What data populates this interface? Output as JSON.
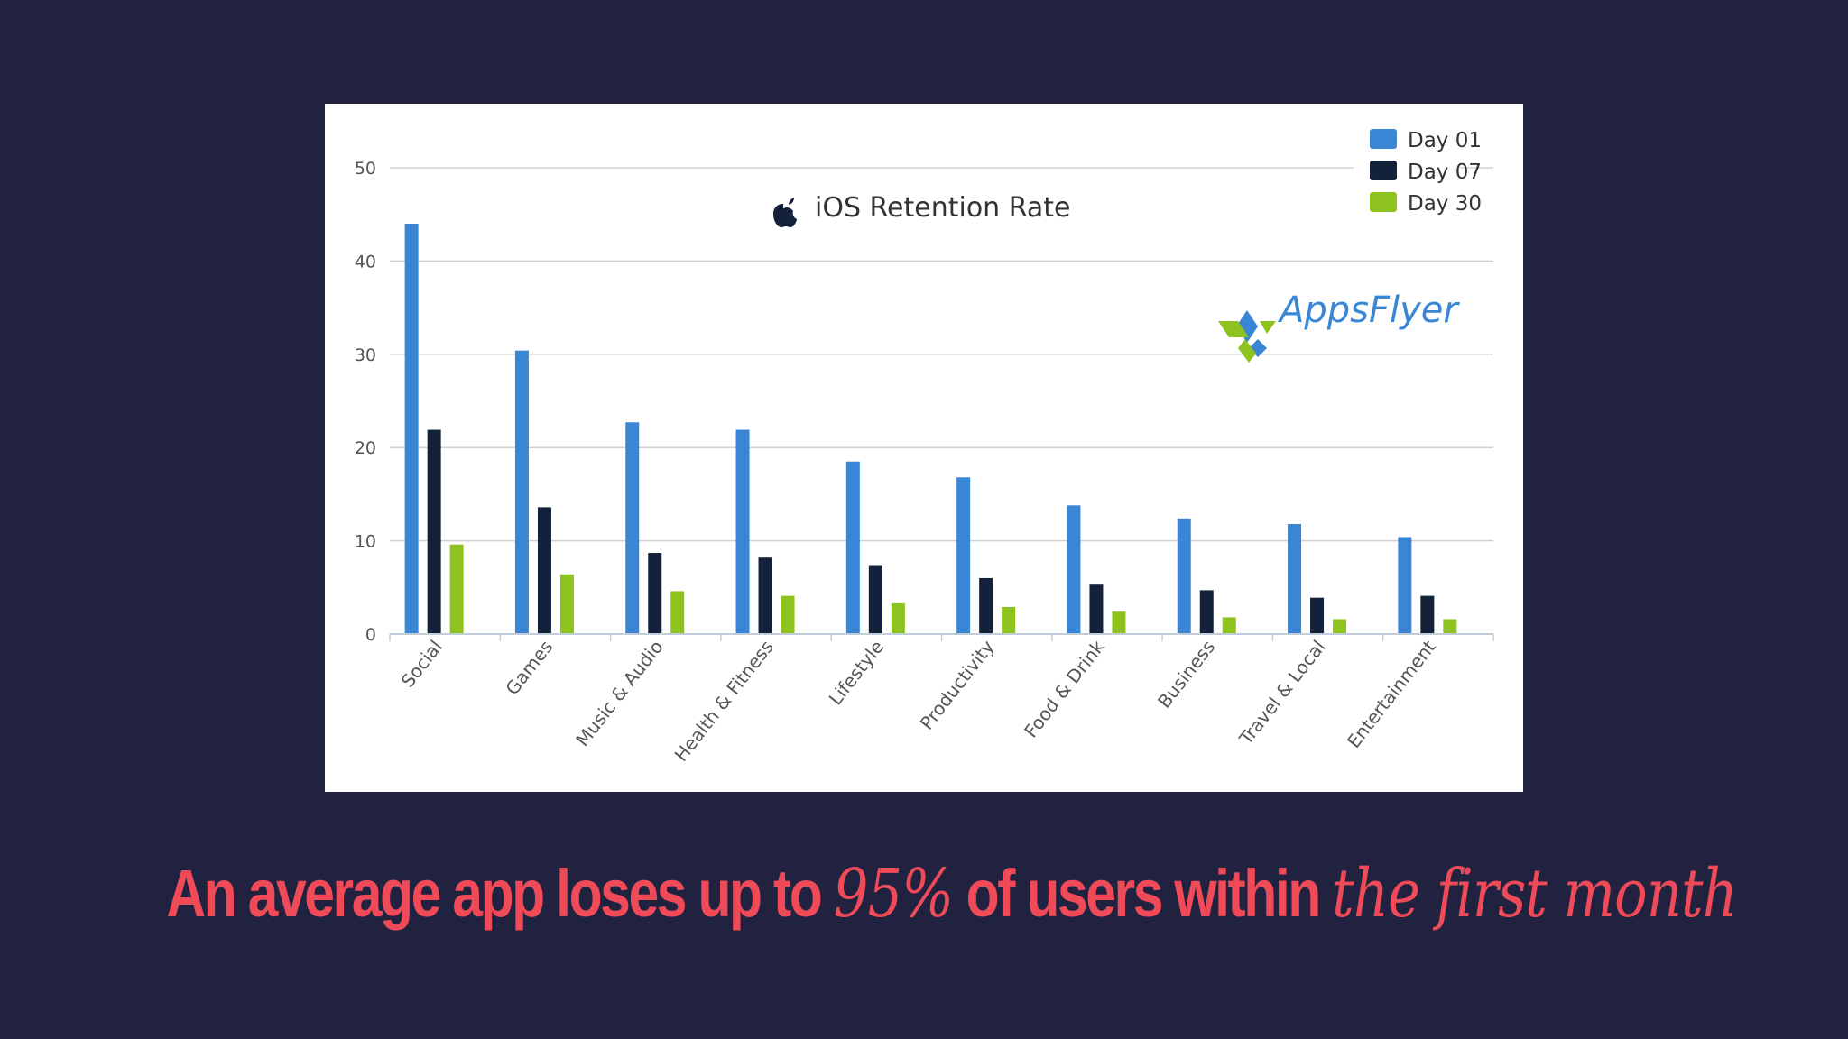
{
  "chart_data": {
    "type": "bar",
    "title": "iOS Retention Rate",
    "title_icon": "apple-icon",
    "categories": [
      "Social",
      "Games",
      "Music & Audio",
      "Health & Fitness",
      "Lifestyle",
      "Productivity",
      "Food & Drink",
      "Business",
      "Travel & Local",
      "Entertainment"
    ],
    "series": [
      {
        "name": "Day 01",
        "color": "#3a86d6",
        "values": [
          44,
          30.4,
          22.7,
          21.9,
          18.5,
          16.8,
          13.8,
          12.4,
          11.8,
          10.4
        ]
      },
      {
        "name": "Day 07",
        "color": "#14213a",
        "values": [
          21.9,
          13.6,
          8.7,
          8.2,
          7.3,
          6.0,
          5.3,
          4.7,
          3.9,
          4.1
        ]
      },
      {
        "name": "Day 30",
        "color": "#8dc21f",
        "values": [
          9.6,
          6.4,
          4.6,
          4.1,
          3.3,
          2.9,
          2.4,
          1.8,
          1.6,
          1.6
        ]
      }
    ],
    "ylim": [
      0,
      50
    ],
    "yticks": [
      0,
      10,
      20,
      30,
      40,
      50
    ],
    "grid": true,
    "legend_position": "top-right",
    "xlabel": "",
    "ylabel": ""
  },
  "logo": {
    "text": "AppsFlyer",
    "icon": "appsflyer-logo-icon"
  },
  "caption": {
    "part1": "An average app loses up to ",
    "highlight1": "95%",
    "part2": " of users within ",
    "highlight2": "the first month"
  },
  "colors": {
    "background": "#212240",
    "caption": "#ee4a58",
    "panel": "#ffffff"
  }
}
